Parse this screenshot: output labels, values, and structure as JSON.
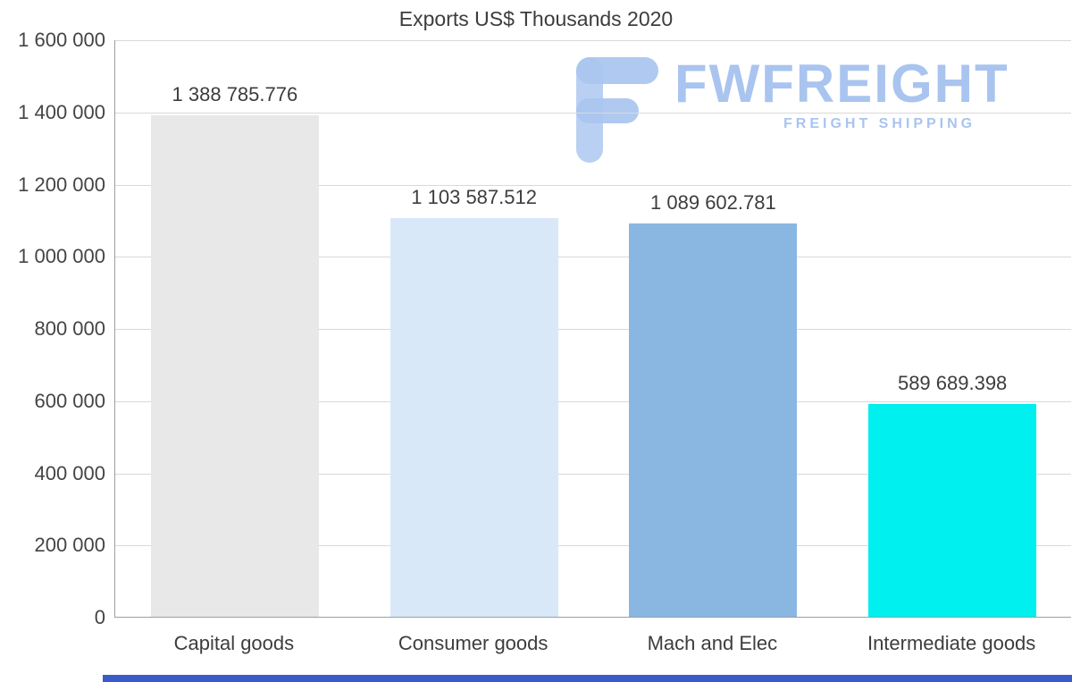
{
  "page": {
    "background": "#ffffff"
  },
  "chart_data": {
    "type": "bar",
    "title": "Exports US$ Thousands 2020",
    "categories": [
      "Capital goods",
      "Consumer goods",
      "Mach and Elec",
      "Intermediate goods"
    ],
    "values": [
      1388785.776,
      1103587.512,
      1089602.781,
      589689.398
    ],
    "value_labels": [
      "1 388 785.776",
      "1 103 587.512",
      "1 089 602.781",
      "589 689.398"
    ],
    "bar_colors": [
      "#e8e8e8",
      "#d9e8f8",
      "#8ab7e2",
      "#00efef"
    ],
    "ylim": [
      0,
      1600000
    ],
    "ytick_interval": 200000,
    "ytick_labels": [
      "1 600 000",
      "1 400 000",
      "1 200 000",
      "1 000 000",
      "800 000",
      "600 000",
      "400 000",
      "200 000",
      "0"
    ],
    "xlabel": "",
    "ylabel": "",
    "grid": true,
    "legend": "none"
  },
  "watermark": {
    "brand": "FWFREIGHT",
    "tagline": "FREIGHT SHIPPING",
    "color": "#a9c4ef"
  },
  "footer": {
    "accent_color": "#3a5bc7"
  }
}
